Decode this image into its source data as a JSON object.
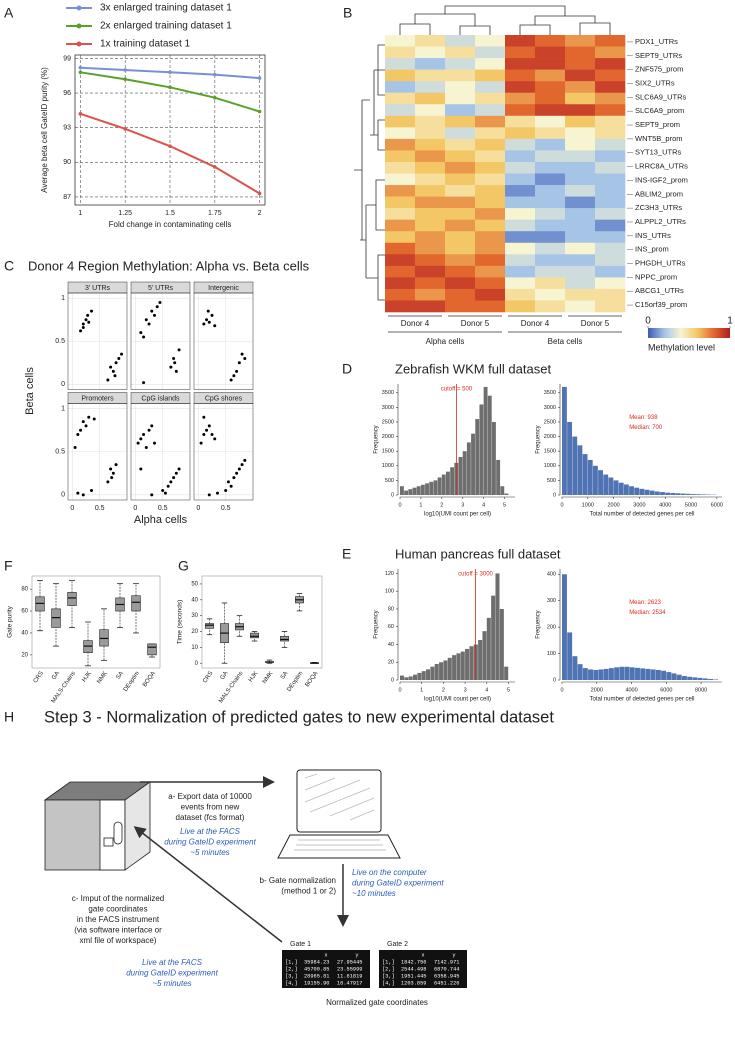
{
  "figure": {
    "panel_labels": [
      "A",
      "B",
      "C",
      "D",
      "E",
      "F",
      "G",
      "H"
    ]
  },
  "chart_data": [
    {
      "type": "line",
      "legend": "top",
      "xlabel": "Fold change in contaminating cells",
      "ylabel": "Average beta cell GateID purity (%)",
      "x": [
        1,
        1.25,
        1.5,
        1.75,
        2
      ],
      "xlim": [
        0.97,
        2.03
      ],
      "xticks": [
        1,
        1.25,
        1.5,
        1.75,
        2
      ],
      "ylim": [
        86.3,
        99.3
      ],
      "yticks": [
        87,
        90,
        93,
        96,
        99
      ],
      "grid": "dashed",
      "series": [
        {
          "name": "3x enlarged training dataset 1",
          "color": "#7b8fd6",
          "values": [
            98.2,
            98.0,
            97.8,
            97.6,
            97.3
          ]
        },
        {
          "name": "2x enlarged training dataset 1",
          "color": "#5aa02c",
          "values": [
            97.8,
            97.2,
            96.5,
            95.6,
            94.4
          ]
        },
        {
          "name": "1x training dataset 1",
          "color": "#d9534f",
          "values": [
            94.2,
            92.9,
            91.4,
            89.6,
            87.3
          ]
        }
      ]
    },
    {
      "type": "heatmap",
      "colorscale": [
        "#3a5bb8",
        "#a6c4e6",
        "#f7f4d2",
        "#f4c766",
        "#e2672f",
        "#b01c22"
      ],
      "zlim": [
        0,
        1
      ],
      "colorbar_ticks": [
        0,
        1
      ],
      "colorbar_label": "Methylation level",
      "column_groups": [
        "Donor 4",
        "Donor 5",
        "Donor 4",
        "Donor 5"
      ],
      "cell_groups": [
        "Alpha cells",
        "Beta cells"
      ],
      "annotated_rows": [
        "PDX1_UTRs",
        "SEPT9_UTRs",
        "ZNF575_prom",
        "SIX2_UTRs",
        "SLC6A9_UTRs",
        "SLC6A9_prom",
        "SEPT9_prom",
        "WNT5B_prom",
        "SYT13_UTRs",
        "LRRC8A_UTRs",
        "INS-IGF2_prom",
        "ABLIM2_prom",
        "ZC3H3_UTRs",
        "ALPPL2_UTRs",
        "INS_UTRs",
        "INS_prom",
        "PHGDH_UTRs",
        "NPPC_prom",
        "ABCG1_UTRs",
        "C15orf39_prom"
      ],
      "z": [
        [
          0.4,
          0.5,
          0.3,
          0.4,
          0.9,
          0.8,
          0.7,
          0.8
        ],
        [
          0.5,
          0.4,
          0.5,
          0.3,
          0.8,
          0.9,
          0.8,
          0.7
        ],
        [
          0.3,
          0.2,
          0.3,
          0.4,
          0.9,
          0.9,
          0.8,
          0.9
        ],
        [
          0.6,
          0.5,
          0.5,
          0.6,
          0.8,
          0.7,
          0.9,
          0.8
        ],
        [
          0.2,
          0.3,
          0.4,
          0.3,
          0.9,
          0.8,
          0.7,
          0.9
        ],
        [
          0.5,
          0.6,
          0.4,
          0.5,
          0.7,
          0.8,
          0.6,
          0.7
        ],
        [
          0.3,
          0.4,
          0.2,
          0.3,
          0.8,
          0.9,
          0.9,
          0.8
        ],
        [
          0.6,
          0.5,
          0.6,
          0.7,
          0.5,
          0.4,
          0.6,
          0.5
        ],
        [
          0.4,
          0.5,
          0.3,
          0.5,
          0.6,
          0.5,
          0.4,
          0.5
        ],
        [
          0.7,
          0.6,
          0.5,
          0.6,
          0.3,
          0.2,
          0.4,
          0.3
        ],
        [
          0.6,
          0.7,
          0.6,
          0.5,
          0.2,
          0.3,
          0.3,
          0.2
        ],
        [
          0.5,
          0.6,
          0.7,
          0.6,
          0.3,
          0.2,
          0.2,
          0.3
        ],
        [
          0.4,
          0.5,
          0.6,
          0.5,
          0.2,
          0.1,
          0.2,
          0.2
        ],
        [
          0.7,
          0.6,
          0.5,
          0.6,
          0.1,
          0.2,
          0.3,
          0.2
        ],
        [
          0.6,
          0.7,
          0.7,
          0.6,
          0.2,
          0.2,
          0.1,
          0.2
        ],
        [
          0.5,
          0.6,
          0.6,
          0.7,
          0.4,
          0.3,
          0.2,
          0.3
        ],
        [
          0.7,
          0.6,
          0.7,
          0.6,
          0.3,
          0.2,
          0.2,
          0.1
        ],
        [
          0.6,
          0.7,
          0.6,
          0.7,
          0.1,
          0.1,
          0.2,
          0.2
        ],
        [
          0.8,
          0.7,
          0.6,
          0.7,
          0.4,
          0.3,
          0.4,
          0.3
        ],
        [
          0.9,
          0.8,
          0.7,
          0.8,
          0.3,
          0.2,
          0.2,
          0.3
        ],
        [
          0.8,
          0.9,
          0.8,
          0.7,
          0.2,
          0.3,
          0.3,
          0.2
        ],
        [
          0.9,
          0.8,
          0.9,
          0.8,
          0.4,
          0.5,
          0.3,
          0.4
        ],
        [
          0.8,
          0.7,
          0.8,
          0.9,
          0.5,
          0.4,
          0.5,
          0.5
        ],
        [
          0.9,
          0.9,
          0.8,
          0.8,
          0.6,
          0.5,
          0.4,
          0.5
        ]
      ]
    },
    {
      "type": "scatter",
      "title": "Donor 4 Region Methylation: Alpha vs. Beta cells",
      "xlabel": "Alpha cells",
      "ylabel": "Beta cells",
      "color": "#000000",
      "xlim": [
        -0.08,
        1.0
      ],
      "xticks": [
        0,
        0.5
      ],
      "ylim": [
        -0.06,
        1.06
      ],
      "yticks": [
        0,
        0.5,
        1
      ],
      "grid": true,
      "facets": [
        {
          "title": "3' UTRs",
          "x": [
            0.15,
            0.2,
            0.25,
            0.3,
            0.35,
            0.2,
            0.28,
            0.7,
            0.75,
            0.8,
            0.85,
            0.65,
            0.9,
            0.78
          ],
          "y": [
            0.62,
            0.7,
            0.75,
            0.72,
            0.85,
            0.66,
            0.8,
            0.2,
            0.15,
            0.25,
            0.3,
            0.05,
            0.35,
            0.1
          ]
        },
        {
          "title": "5' UTRs",
          "x": [
            0.1,
            0.2,
            0.3,
            0.35,
            0.4,
            0.25,
            0.45,
            0.15,
            0.65,
            0.7,
            0.75,
            0.8,
            0.72,
            0.15
          ],
          "y": [
            0.6,
            0.75,
            0.85,
            0.8,
            0.9,
            0.7,
            0.95,
            0.55,
            0.2,
            0.3,
            0.15,
            0.4,
            0.25,
            0.02
          ]
        },
        {
          "title": "Intergenic",
          "x": [
            0.1,
            0.15,
            0.2,
            0.25,
            0.3,
            0.18,
            0.6,
            0.65,
            0.7,
            0.75,
            0.8,
            0.85
          ],
          "y": [
            0.7,
            0.75,
            0.72,
            0.8,
            0.68,
            0.85,
            0.05,
            0.1,
            0.15,
            0.25,
            0.35,
            0.3
          ]
        },
        {
          "title": "Promoters",
          "x": [
            0.05,
            0.1,
            0.15,
            0.2,
            0.3,
            0.4,
            0.25,
            0.1,
            0.65,
            0.7,
            0.75,
            0.8,
            0.72,
            0.2,
            0.35
          ],
          "y": [
            0.55,
            0.7,
            0.75,
            0.85,
            0.9,
            0.88,
            0.8,
            0.02,
            0.15,
            0.3,
            0.25,
            0.35,
            0.2,
            0.0,
            0.05
          ]
        },
        {
          "title": "CpG islands",
          "x": [
            0.05,
            0.1,
            0.15,
            0.2,
            0.25,
            0.3,
            0.35,
            0.1,
            0.5,
            0.6,
            0.65,
            0.7,
            0.75,
            0.8,
            0.55,
            0.3
          ],
          "y": [
            0.6,
            0.65,
            0.7,
            0.55,
            0.75,
            0.8,
            0.6,
            0.3,
            0.05,
            0.1,
            0.15,
            0.2,
            0.25,
            0.3,
            0.02,
            0.0
          ]
        },
        {
          "title": "CpG shores",
          "x": [
            0.05,
            0.1,
            0.15,
            0.2,
            0.25,
            0.3,
            0.1,
            0.5,
            0.6,
            0.65,
            0.7,
            0.75,
            0.8,
            0.85,
            0.55,
            0.35,
            0.2
          ],
          "y": [
            0.6,
            0.7,
            0.75,
            0.8,
            0.7,
            0.65,
            0.9,
            0.05,
            0.1,
            0.2,
            0.25,
            0.3,
            0.35,
            0.4,
            0.15,
            0.02,
            0.0
          ]
        }
      ]
    },
    {
      "type": "histogram",
      "title": "Zebrafish WKM full dataset",
      "color": "#6e6e6e",
      "xlabel": "log10(UMI count per cell)",
      "ylabel": "Frequency",
      "bins": [
        0,
        0.2,
        0.4,
        0.6,
        0.8,
        1.0,
        1.2,
        1.4,
        1.6,
        1.8,
        2.0,
        2.2,
        2.4,
        2.6,
        2.8,
        3.0,
        3.2,
        3.4,
        3.6,
        3.8,
        4.0,
        4.2,
        4.4,
        4.6,
        4.8,
        5.0,
        5.2
      ],
      "values": [
        300,
        150,
        200,
        250,
        300,
        350,
        400,
        450,
        500,
        600,
        700,
        800,
        950,
        1100,
        1300,
        1500,
        1800,
        2100,
        2600,
        3100,
        3700,
        3400,
        2500,
        1200,
        300,
        50
      ],
      "xlim": [
        0,
        5.5
      ],
      "xticks": [
        0,
        1,
        2,
        3,
        4,
        5
      ],
      "ylim": [
        0,
        3800
      ],
      "yticks": [
        0,
        500,
        1000,
        1500,
        2000,
        2500,
        3000,
        3500
      ],
      "cutoff": 2.7,
      "cutoff_label": "cutoff = 500",
      "cutoff_color": "#d62d20"
    },
    {
      "type": "histogram",
      "color": "#4f73b3",
      "xlabel": "Total number of detected genes per cell",
      "ylabel": "Frequency",
      "bins": [
        0,
        200,
        400,
        600,
        800,
        1000,
        1200,
        1400,
        1600,
        1800,
        2000,
        2200,
        2400,
        2600,
        2800,
        3000,
        3200,
        3400,
        3600,
        3800,
        4000,
        4200,
        4400,
        4600,
        4800,
        5000,
        5200,
        5400,
        5600,
        5800,
        6000
      ],
      "values": [
        3700,
        2500,
        2000,
        1700,
        1400,
        1200,
        1000,
        850,
        700,
        600,
        500,
        420,
        360,
        300,
        250,
        210,
        180,
        150,
        120,
        100,
        80,
        70,
        60,
        50,
        40,
        30,
        25,
        20,
        15,
        10
      ],
      "xlim": [
        0,
        6200
      ],
      "xticks": [
        0,
        1000,
        2000,
        3000,
        4000,
        5000,
        6000
      ],
      "ylim": [
        0,
        3800
      ],
      "yticks": [
        0,
        500,
        1000,
        1500,
        2000,
        2500,
        3000,
        3500
      ],
      "annotations": [
        "Mean: 938",
        "Median: 700"
      ],
      "annotation_color": "#d62d20"
    },
    {
      "type": "histogram",
      "title": "Human pancreas full dataset",
      "color": "#6e6e6e",
      "xlabel": "log10(UMI count per cell)",
      "ylabel": "Frequency",
      "bins": [
        0,
        0.2,
        0.4,
        0.6,
        0.8,
        1.0,
        1.2,
        1.4,
        1.6,
        1.8,
        2.0,
        2.2,
        2.4,
        2.6,
        2.8,
        3.0,
        3.2,
        3.4,
        3.6,
        3.8,
        4.0,
        4.2,
        4.4,
        4.6,
        4.8,
        5.0
      ],
      "values": [
        5,
        3,
        4,
        6,
        8,
        10,
        12,
        15,
        18,
        20,
        22,
        25,
        28,
        30,
        32,
        35,
        38,
        40,
        45,
        55,
        70,
        95,
        120,
        80,
        15
      ],
      "xlim": [
        0,
        5.3
      ],
      "xticks": [
        0,
        1,
        2,
        3,
        4,
        5
      ],
      "ylim": [
        0,
        125
      ],
      "yticks": [
        0,
        20,
        40,
        60,
        80,
        100,
        120
      ],
      "cutoff": 3.48,
      "cutoff_label": "cutoff = 3000",
      "cutoff_color": "#d62d20"
    },
    {
      "type": "histogram",
      "color": "#4f73b3",
      "xlabel": "Total number of detected genes per cell",
      "ylabel": "Frequency",
      "bins": [
        0,
        300,
        600,
        900,
        1200,
        1500,
        1800,
        2100,
        2400,
        2700,
        3000,
        3300,
        3600,
        3900,
        4200,
        4500,
        4800,
        5100,
        5400,
        5700,
        6000,
        6300,
        6600,
        6900,
        7200,
        7500,
        7800,
        8100,
        8400,
        8700,
        9000
      ],
      "values": [
        400,
        180,
        90,
        60,
        45,
        40,
        38,
        40,
        42,
        45,
        48,
        50,
        50,
        48,
        46,
        44,
        42,
        40,
        38,
        35,
        30,
        25,
        20,
        15,
        12,
        10,
        8,
        6,
        4,
        2
      ],
      "xlim": [
        0,
        9200
      ],
      "xticks": [
        0,
        2000,
        4000,
        6000,
        8000
      ],
      "ylim": [
        0,
        420
      ],
      "yticks": [
        0,
        100,
        200,
        300,
        400
      ],
      "annotations": [
        "Mean: 2623",
        "Median: 2534"
      ],
      "annotation_color": "#d62d20"
    },
    {
      "type": "box",
      "ylabel": "Gate purity",
      "color": "#9a9a9a",
      "categories": [
        "CRS",
        "GA",
        "MALS-Chains",
        "HJK",
        "NMK",
        "SA",
        "DEoptim",
        "BOQA"
      ],
      "values": [
        [
          42,
          60,
          67,
          73,
          88
        ],
        [
          28,
          45,
          54,
          62,
          85
        ],
        [
          45,
          65,
          72,
          77,
          88
        ],
        [
          10,
          22,
          28,
          33,
          50
        ],
        [
          15,
          28,
          35,
          43,
          62
        ],
        [
          45,
          60,
          66,
          72,
          85
        ],
        [
          40,
          60,
          68,
          74,
          85
        ],
        [
          18,
          20,
          27,
          30,
          30
        ]
      ],
      "ylim": [
        8,
        92
      ],
      "yticks": [
        20,
        40,
        60,
        80
      ]
    },
    {
      "type": "box",
      "ylabel": "Time (seconds)",
      "color": "#9a9a9a",
      "categories": [
        "CRS",
        "GA",
        "MALS-Chains",
        "HJK",
        "NMK",
        "SA",
        "DEoptim",
        "BOQA"
      ],
      "values": [
        [
          18,
          22,
          24,
          25,
          28
        ],
        [
          0,
          13,
          19,
          25,
          38
        ],
        [
          17,
          21,
          23,
          25,
          30
        ],
        [
          14,
          16,
          17,
          19,
          20
        ],
        [
          0,
          0.5,
          0.8,
          1,
          2
        ],
        [
          10,
          14,
          15,
          17,
          20
        ],
        [
          33,
          38,
          40,
          42,
          44
        ],
        [
          0,
          0.1,
          0.2,
          0.3,
          0.5
        ]
      ],
      "ylim": [
        -3,
        55
      ],
      "yticks": [
        0,
        10,
        20,
        30,
        40,
        50
      ]
    }
  ],
  "diagram": {
    "title": "Step 3 - Normalization of predicted gates to new experimental dataset",
    "step_a": {
      "text": [
        "a- Export data of 10000",
        "events from new",
        "dataset (fcs format)"
      ],
      "timing": [
        "Live at the FACS",
        "during GateID experiment",
        "~5 minutes"
      ]
    },
    "step_b": {
      "text": [
        "b- Gate normalization",
        "(method 1 or 2)"
      ],
      "timing": [
        "Live on the computer",
        "during GateID experiment",
        "~10 minutes"
      ]
    },
    "step_c": {
      "text": [
        "c- Imput of the normalized",
        "gate coordinates",
        "in the FACS instrument",
        "(via software interface or",
        "xml file of workspace)"
      ],
      "timing": [
        "Live at the FACS",
        "during GateID experiment",
        "~5 minutes"
      ]
    },
    "gates": [
      {
        "name": "Gate 1",
        "header": [
          "x",
          "y"
        ],
        "rows": [
          [
            "[1,]",
            "35984.23",
            "27.95445"
          ],
          [
            "[2,]",
            "45700.85",
            "23.55999"
          ],
          [
            "[3,]",
            "28965.81",
            "11.61819"
          ],
          [
            "[4,]",
            "19155.90",
            "16.47917"
          ]
        ]
      },
      {
        "name": "Gate 2",
        "header": [
          "x",
          "y"
        ],
        "rows": [
          [
            "[1,]",
            "1842.756",
            "7142.971"
          ],
          [
            "[2,]",
            "2544.498",
            "6870.744"
          ],
          [
            "[3,]",
            "1951.445",
            "6358.945"
          ],
          [
            "[4,]",
            "1203.859",
            "6451.226"
          ]
        ]
      }
    ],
    "caption": "Normalized gate coordinates"
  }
}
